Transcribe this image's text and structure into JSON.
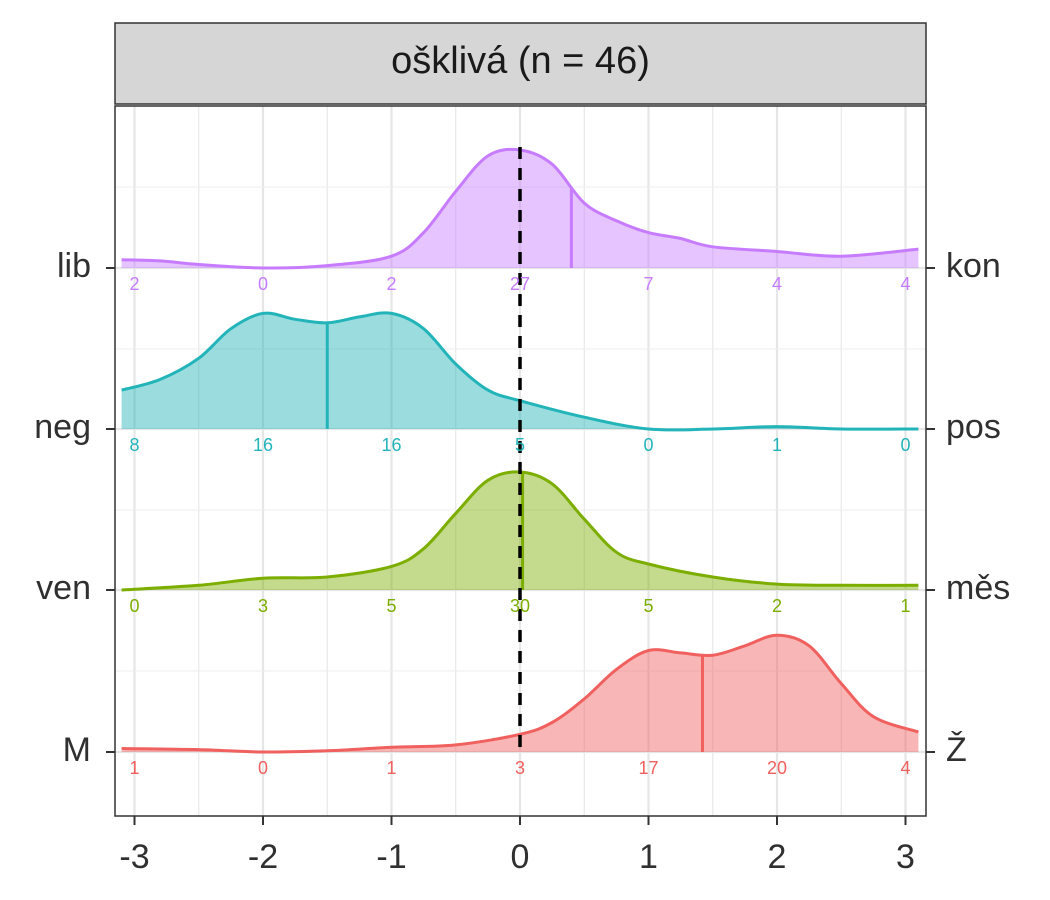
{
  "chart_data": {
    "type": "ridgeline-density",
    "title": "ošklivá (n = 46)",
    "xlim": [
      -3.1,
      3.1
    ],
    "x_ticks": [
      -3,
      -2,
      -1,
      0,
      1,
      2,
      3
    ],
    "x_tick_labels": [
      "-3",
      "-2",
      "-1",
      "0",
      "1",
      "2",
      "3"
    ],
    "reference_line_x": 0,
    "grid": true,
    "count_positions": [
      -3,
      -2,
      -1,
      0,
      1,
      2,
      3
    ],
    "series": [
      {
        "left_label": "lib",
        "right_label": "kon",
        "color": "#C77CFF",
        "mean": 0.4,
        "counts": [
          "2",
          "0",
          "2",
          "27",
          "7",
          "4",
          "4"
        ],
        "density": [
          [
            -3.1,
            0.07
          ],
          [
            -2.8,
            0.06
          ],
          [
            -2.5,
            0.03
          ],
          [
            -2.0,
            0.0
          ],
          [
            -1.5,
            0.02
          ],
          [
            -1.0,
            0.1
          ],
          [
            -0.75,
            0.3
          ],
          [
            -0.5,
            0.65
          ],
          [
            -0.25,
            0.95
          ],
          [
            0.0,
            1.0
          ],
          [
            0.25,
            0.88
          ],
          [
            0.5,
            0.55
          ],
          [
            0.75,
            0.4
          ],
          [
            1.0,
            0.3
          ],
          [
            1.25,
            0.25
          ],
          [
            1.5,
            0.18
          ],
          [
            2.0,
            0.14
          ],
          [
            2.5,
            0.1
          ],
          [
            3.1,
            0.16
          ]
        ]
      },
      {
        "left_label": "neg",
        "right_label": "pos",
        "color": "#22B4B9",
        "mean": -1.5,
        "counts": [
          "8",
          "16",
          "16",
          "5",
          "0",
          "1",
          "0"
        ],
        "density": [
          [
            -3.1,
            0.33
          ],
          [
            -2.8,
            0.42
          ],
          [
            -2.5,
            0.6
          ],
          [
            -2.25,
            0.85
          ],
          [
            -2.0,
            0.98
          ],
          [
            -1.75,
            0.93
          ],
          [
            -1.5,
            0.9
          ],
          [
            -1.25,
            0.95
          ],
          [
            -1.0,
            0.98
          ],
          [
            -0.75,
            0.85
          ],
          [
            -0.5,
            0.55
          ],
          [
            -0.25,
            0.33
          ],
          [
            0.0,
            0.24
          ],
          [
            0.5,
            0.1
          ],
          [
            1.0,
            0.0
          ],
          [
            1.5,
            0.0
          ],
          [
            2.0,
            0.02
          ],
          [
            2.5,
            0.0
          ],
          [
            3.1,
            0.0
          ]
        ]
      },
      {
        "left_label": "ven",
        "right_label": "měs",
        "color": "#7CAE00",
        "mean": 0.02,
        "counts": [
          "0",
          "3",
          "5",
          "30",
          "5",
          "2",
          "1"
        ],
        "density": [
          [
            -3.1,
            0.0
          ],
          [
            -2.5,
            0.04
          ],
          [
            -2.0,
            0.1
          ],
          [
            -1.5,
            0.11
          ],
          [
            -1.0,
            0.2
          ],
          [
            -0.75,
            0.35
          ],
          [
            -0.5,
            0.65
          ],
          [
            -0.25,
            0.93
          ],
          [
            0.0,
            1.0
          ],
          [
            0.25,
            0.9
          ],
          [
            0.5,
            0.6
          ],
          [
            0.75,
            0.32
          ],
          [
            1.0,
            0.22
          ],
          [
            1.5,
            0.11
          ],
          [
            2.0,
            0.05
          ],
          [
            2.5,
            0.04
          ],
          [
            3.1,
            0.04
          ]
        ]
      },
      {
        "left_label": "M",
        "right_label": "Ž",
        "color": "#F0605E",
        "mean": 1.42,
        "counts": [
          "1",
          "0",
          "1",
          "3",
          "17",
          "20",
          "4"
        ],
        "density": [
          [
            -3.1,
            0.03
          ],
          [
            -2.5,
            0.02
          ],
          [
            -2.0,
            0.0
          ],
          [
            -1.5,
            0.01
          ],
          [
            -1.0,
            0.04
          ],
          [
            -0.5,
            0.06
          ],
          [
            0.0,
            0.15
          ],
          [
            0.25,
            0.25
          ],
          [
            0.5,
            0.45
          ],
          [
            0.75,
            0.7
          ],
          [
            1.0,
            0.86
          ],
          [
            1.25,
            0.84
          ],
          [
            1.5,
            0.82
          ],
          [
            1.75,
            0.9
          ],
          [
            2.0,
            0.99
          ],
          [
            2.25,
            0.9
          ],
          [
            2.5,
            0.58
          ],
          [
            2.75,
            0.3
          ],
          [
            3.1,
            0.17
          ]
        ]
      }
    ]
  }
}
